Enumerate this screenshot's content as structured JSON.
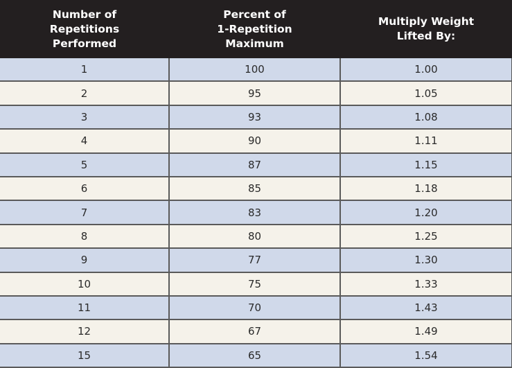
{
  "headers": [
    "Number of\nRepetitions\nPerformed",
    "Percent of\n1-Repetition\nMaximum",
    "Multiply Weight\nLifted By:"
  ],
  "rows": [
    [
      "1",
      "100",
      "1.00"
    ],
    [
      "2",
      "95",
      "1.05"
    ],
    [
      "3",
      "93",
      "1.08"
    ],
    [
      "4",
      "90",
      "1.11"
    ],
    [
      "5",
      "87",
      "1.15"
    ],
    [
      "6",
      "85",
      "1.18"
    ],
    [
      "7",
      "83",
      "1.20"
    ],
    [
      "8",
      "80",
      "1.25"
    ],
    [
      "9",
      "77",
      "1.30"
    ],
    [
      "10",
      "75",
      "1.33"
    ],
    [
      "11",
      "70",
      "1.43"
    ],
    [
      "12",
      "67",
      "1.49"
    ],
    [
      "15",
      "65",
      "1.54"
    ]
  ],
  "colors": {
    "header_bg": "#231f20",
    "row_odd": "#d0d9ea",
    "row_even": "#f5f2ea"
  }
}
